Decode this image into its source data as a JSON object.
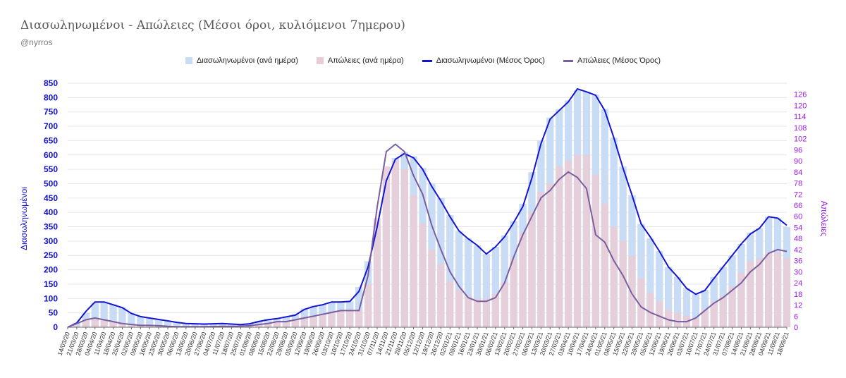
{
  "title": "Διασωληνωμένοι - Απώλειες (Μέσοι όροι, κυλιόμενοι 7ημερου)",
  "subtitle": "@nyrros",
  "colors": {
    "intubated_bar": "#c9dcf5",
    "deaths_bar": "#e9cdd6",
    "intubated_line": "#1414d2",
    "deaths_line": "#7b5ea0",
    "left_axis_text": "#1010c8",
    "right_axis_text": "#9a17e0"
  },
  "chart_data": {
    "type": "bar",
    "title": "Διασωληνωμένοι - Απώλειες (Μέσοι όροι, κυλιόμενοι 7ημερου)",
    "ylabel": "Διασωληνωμένοι",
    "y2label": "Απώλειες",
    "ylim": [
      0,
      850
    ],
    "y2lim": [
      0,
      132
    ],
    "yticks": [
      0,
      50,
      100,
      150,
      200,
      250,
      300,
      350,
      400,
      450,
      500,
      550,
      600,
      650,
      700,
      750,
      800,
      850
    ],
    "y2ticks": [
      0,
      6,
      12,
      18,
      24,
      30,
      36,
      42,
      48,
      54,
      60,
      66,
      72,
      78,
      84,
      90,
      96,
      102,
      108,
      114,
      120,
      126
    ],
    "grid": true,
    "legend_position": "top-center",
    "x_start": "2020-03-14",
    "x_end": "2021-09-20",
    "x_tick_step_days": 7,
    "x": [
      "14/03/20",
      "21/03/20",
      "28/03/20",
      "04/04/20",
      "11/04/20",
      "18/04/20",
      "25/04/20",
      "02/05/20",
      "09/05/20",
      "16/05/20",
      "23/05/20",
      "30/05/20",
      "06/06/20",
      "13/06/20",
      "20/06/20",
      "27/06/20",
      "04/07/20",
      "11/07/20",
      "18/07/20",
      "25/07/20",
      "01/08/20",
      "08/08/20",
      "15/08/20",
      "22/08/20",
      "29/08/20",
      "05/09/20",
      "12/09/20",
      "19/09/20",
      "26/09/20",
      "03/10/20",
      "10/10/20",
      "17/10/20",
      "24/10/20",
      "31/10/20",
      "07/11/20",
      "14/11/20",
      "21/11/20",
      "28/11/20",
      "05/12/20",
      "12/12/20",
      "19/12/20",
      "26/12/20",
      "02/01/21",
      "09/01/21",
      "16/01/21",
      "23/01/21",
      "30/01/21",
      "06/02/21",
      "13/02/21",
      "20/02/21",
      "27/02/21",
      "06/03/21",
      "13/03/21",
      "20/03/21",
      "27/03/21",
      "03/04/21",
      "10/04/21",
      "17/04/21",
      "24/04/21",
      "01/05/21",
      "08/05/21",
      "15/05/21",
      "22/05/21",
      "29/05/21",
      "05/06/21",
      "12/06/21",
      "19/06/21",
      "26/06/21",
      "03/07/21",
      "10/07/21",
      "17/07/21",
      "24/07/21",
      "31/07/21",
      "07/08/21",
      "14/08/21",
      "21/08/21",
      "28/08/21",
      "04/09/21",
      "11/09/21",
      "18/09/21"
    ],
    "series": [
      {
        "name": "Διασωληνωμένοι (ανά ημέρα)",
        "kind": "bar",
        "axis": "left",
        "values": [
          0,
          15,
          50,
          85,
          90,
          80,
          70,
          50,
          38,
          32,
          28,
          22,
          18,
          12,
          12,
          12,
          13,
          14,
          12,
          10,
          12,
          22,
          28,
          32,
          38,
          45,
          65,
          75,
          80,
          88,
          90,
          90,
          140,
          230,
          360,
          520,
          590,
          610,
          595,
          555,
          500,
          450,
          390,
          335,
          310,
          285,
          255,
          280,
          320,
          370,
          430,
          540,
          650,
          730,
          760,
          790,
          825,
          820,
          810,
          760,
          660,
          560,
          460,
          360,
          310,
          265,
          210,
          175,
          135,
          115,
          130,
          175,
          210,
          250,
          290,
          330,
          345,
          385,
          380,
          350
        ]
      },
      {
        "name": "Απώλειες (ανά ημέρα)",
        "kind": "bar",
        "axis": "left",
        "values": [
          0,
          5,
          25,
          32,
          28,
          18,
          14,
          8,
          6,
          5,
          4,
          3,
          2,
          2,
          2,
          2,
          2,
          2,
          2,
          3,
          4,
          10,
          15,
          18,
          20,
          25,
          35,
          40,
          45,
          55,
          60,
          62,
          60,
          150,
          380,
          560,
          580,
          550,
          460,
          360,
          270,
          220,
          160,
          130,
          110,
          100,
          100,
          115,
          155,
          240,
          330,
          400,
          470,
          500,
          560,
          580,
          600,
          600,
          530,
          430,
          350,
          300,
          250,
          170,
          120,
          90,
          60,
          50,
          40,
          30,
          60,
          90,
          110,
          140,
          190,
          230,
          240,
          260,
          260,
          240
        ]
      },
      {
        "name": "Διασωληνωμένοι (Μέσος Όρος)",
        "kind": "line",
        "axis": "left",
        "values": [
          0,
          15,
          55,
          88,
          88,
          78,
          68,
          48,
          37,
          32,
          27,
          22,
          17,
          13,
          12,
          11,
          12,
          13,
          11,
          9,
          12,
          20,
          26,
          30,
          36,
          42,
          62,
          72,
          78,
          88,
          88,
          90,
          125,
          210,
          350,
          510,
          585,
          605,
          590,
          550,
          490,
          440,
          385,
          335,
          308,
          285,
          255,
          280,
          315,
          365,
          420,
          520,
          640,
          725,
          755,
          785,
          830,
          820,
          808,
          755,
          660,
          555,
          460,
          360,
          315,
          265,
          210,
          175,
          135,
          115,
          128,
          170,
          210,
          250,
          290,
          325,
          345,
          385,
          380,
          355
        ]
      },
      {
        "name": "Απώλειες (Μέσος Όρος)",
        "kind": "line",
        "axis": "right",
        "values": [
          0,
          2,
          4,
          5,
          4,
          3,
          2,
          1.5,
          1,
          1,
          0.8,
          0.5,
          0.3,
          0.3,
          0.3,
          0.3,
          0.4,
          0.5,
          0.5,
          0.6,
          0.8,
          1.5,
          2,
          3,
          3,
          4,
          5,
          6,
          7,
          8,
          9,
          9,
          9,
          28,
          65,
          95,
          99,
          95,
          82,
          72,
          55,
          42,
          30,
          22,
          16,
          14,
          14,
          16,
          24,
          38,
          50,
          60,
          70,
          74,
          80,
          84,
          81,
          75,
          50,
          46,
          36,
          28,
          18,
          11,
          8,
          6,
          4,
          3,
          3,
          5,
          9,
          13,
          16,
          20,
          24,
          30,
          34,
          40,
          42,
          41
        ]
      }
    ]
  },
  "legend": [
    {
      "label": "Διασωληνωμένοι (ανά ημέρα)",
      "swatch": "box"
    },
    {
      "label": "Απώλειες (ανά ημέρα)",
      "swatch": "box"
    },
    {
      "label": "Διασωληνωμένοι (Μέσος Όρος)",
      "swatch": "line"
    },
    {
      "label": "Απώλειες (Μέσος Όρος)",
      "swatch": "line"
    }
  ]
}
